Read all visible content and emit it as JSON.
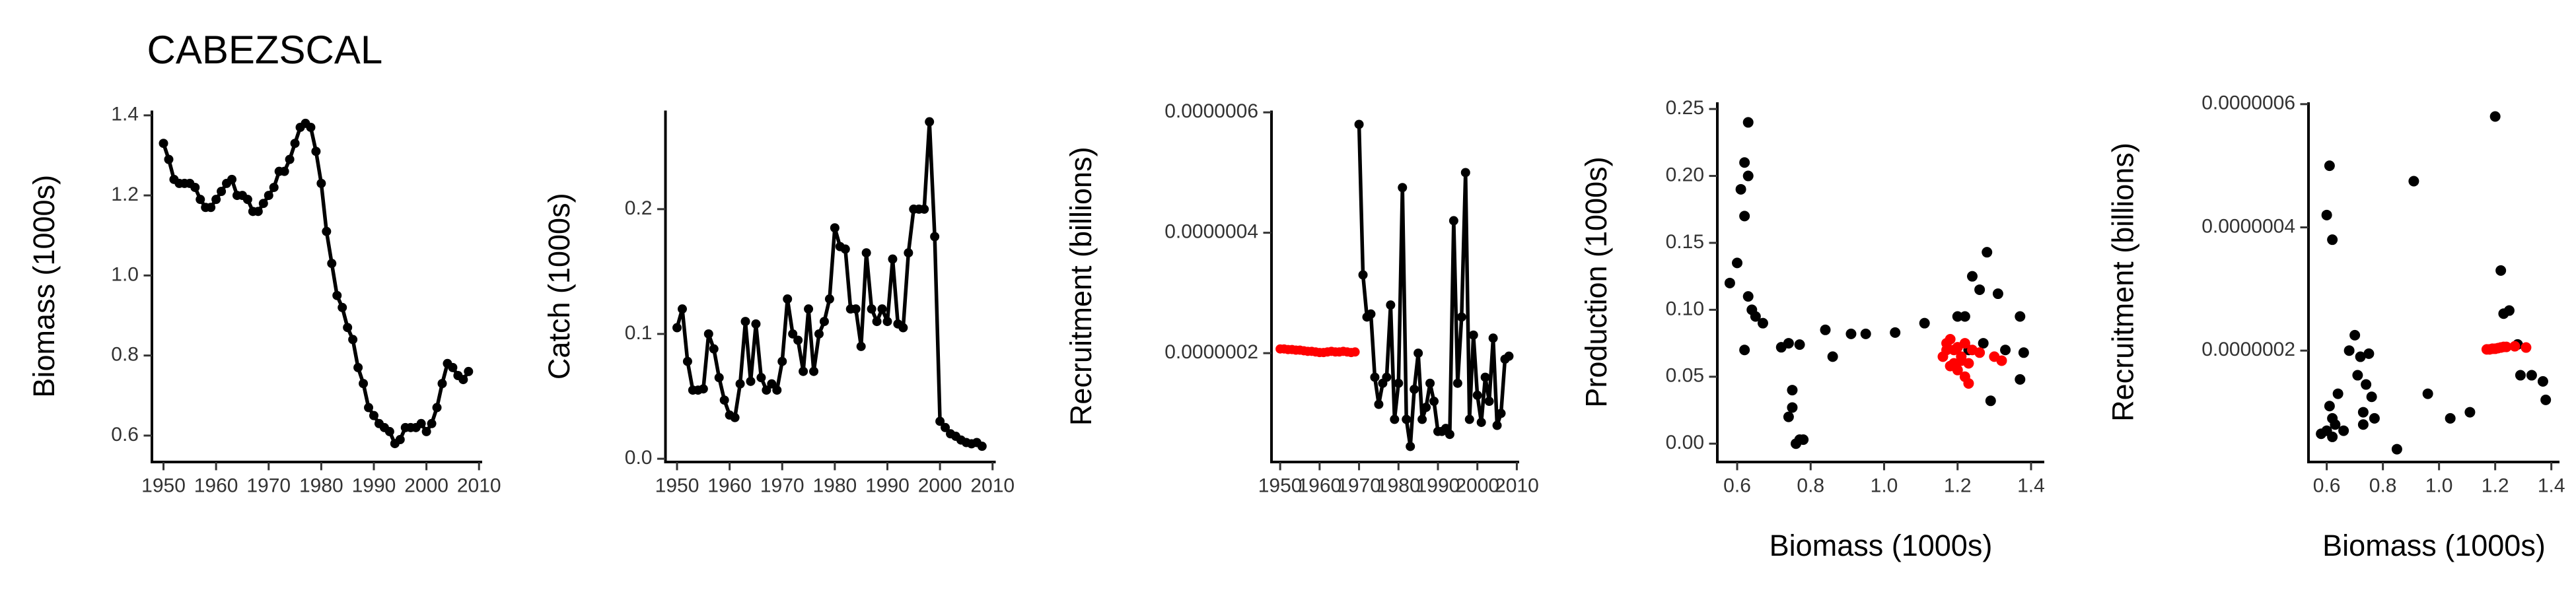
{
  "title": "CABEZSCAL",
  "chart_data": [
    {
      "type": "line",
      "ylabel": "Biomass (1000s)",
      "x": [
        1950,
        1951,
        1952,
        1953,
        1954,
        1955,
        1956,
        1957,
        1958,
        1959,
        1960,
        1961,
        1962,
        1963,
        1964,
        1965,
        1966,
        1967,
        1968,
        1969,
        1970,
        1971,
        1972,
        1973,
        1974,
        1975,
        1976,
        1977,
        1978,
        1979,
        1980,
        1981,
        1982,
        1983,
        1984,
        1985,
        1986,
        1987,
        1988,
        1989,
        1990,
        1991,
        1992,
        1993,
        1994,
        1995,
        1996,
        1997,
        1998,
        1999,
        2000,
        2001,
        2002,
        2003,
        2004,
        2005,
        2006,
        2007,
        2008
      ],
      "series": [
        {
          "color": "#000000",
          "mode": "line-points",
          "values": [
            1.33,
            1.29,
            1.24,
            1.23,
            1.23,
            1.23,
            1.22,
            1.19,
            1.17,
            1.17,
            1.19,
            1.21,
            1.23,
            1.24,
            1.2,
            1.2,
            1.19,
            1.16,
            1.16,
            1.18,
            1.2,
            1.22,
            1.26,
            1.26,
            1.29,
            1.33,
            1.37,
            1.38,
            1.37,
            1.31,
            1.23,
            1.11,
            1.03,
            0.95,
            0.92,
            0.87,
            0.84,
            0.77,
            0.73,
            0.67,
            0.65,
            0.63,
            0.62,
            0.61,
            0.58,
            0.59,
            0.62,
            0.62,
            0.62,
            0.63,
            0.61,
            0.63,
            0.67,
            0.73,
            0.78,
            0.77,
            0.75,
            0.74,
            0.76
          ]
        }
      ],
      "xlim": [
        1947.8,
        2010.6
      ],
      "xticks": [
        1950,
        1960,
        1970,
        1980,
        1990,
        2000,
        2010
      ],
      "ylim": [
        0.534,
        1.412
      ],
      "yticks": [
        0.6,
        0.8,
        {
          "value": 1,
          "label": "1.0"
        },
        1.2,
        1.4
      ]
    },
    {
      "type": "line",
      "ylabel": "Catch (1000s)",
      "x": [
        1950,
        1951,
        1952,
        1953,
        1954,
        1955,
        1956,
        1957,
        1958,
        1959,
        1960,
        1961,
        1962,
        1963,
        1964,
        1965,
        1966,
        1967,
        1968,
        1969,
        1970,
        1971,
        1972,
        1973,
        1974,
        1975,
        1976,
        1977,
        1978,
        1979,
        1980,
        1981,
        1982,
        1983,
        1984,
        1985,
        1986,
        1987,
        1988,
        1989,
        1990,
        1991,
        1992,
        1993,
        1994,
        1995,
        1996,
        1997,
        1998,
        1999,
        2000,
        2001,
        2002,
        2003,
        2004,
        2005,
        2006,
        2007,
        2008
      ],
      "series": [
        {
          "color": "#000000",
          "mode": "line-points",
          "values": [
            0.105,
            0.12,
            0.078,
            0.055,
            0.055,
            0.056,
            0.1,
            0.088,
            0.065,
            0.047,
            0.035,
            0.033,
            0.06,
            0.11,
            0.062,
            0.108,
            0.065,
            0.055,
            0.06,
            0.055,
            0.078,
            0.128,
            0.1,
            0.095,
            0.07,
            0.12,
            0.07,
            0.1,
            0.11,
            0.128,
            0.185,
            0.17,
            0.168,
            0.12,
            0.12,
            0.09,
            0.165,
            0.12,
            0.11,
            0.12,
            0.11,
            0.16,
            0.108,
            0.105,
            0.165,
            0.2,
            0.2,
            0.2,
            0.27,
            0.178,
            0.03,
            0.025,
            0.02,
            0.018,
            0.015,
            0.013,
            0.012,
            0.013,
            0.01
          ]
        }
      ],
      "xlim": [
        1947.8,
        2010.6
      ],
      "xticks": [
        1950,
        1960,
        1970,
        1980,
        1990,
        2000,
        2010
      ],
      "ylim": [
        -0.0026,
        0.279
      ],
      "yticks": [
        {
          "value": 0,
          "label": "0.0"
        },
        0.1,
        0.2
      ]
    },
    {
      "type": "line",
      "ylabel": "Recruitment (billions)",
      "x": [
        1950,
        1951,
        1952,
        1953,
        1954,
        1955,
        1956,
        1957,
        1958,
        1959,
        1960,
        1961,
        1962,
        1963,
        1964,
        1965,
        1966,
        1967,
        1968,
        1969,
        1970,
        1971,
        1972,
        1973,
        1974,
        1975,
        1976,
        1977,
        1978,
        1979,
        1980,
        1981,
        1982,
        1983,
        1984,
        1985,
        1986,
        1987,
        1988,
        1989,
        1990,
        1991,
        1992,
        1993,
        1994,
        1995,
        1996,
        1997,
        1998,
        1999,
        2000,
        2001,
        2002,
        2003,
        2004,
        2005,
        2006,
        2007,
        2008
      ],
      "series": [
        {
          "color": "#ff0000",
          "mode": "points",
          "values": [
            2.07e-07,
            2.07e-07,
            2.06e-07,
            2.06e-07,
            2.05e-07,
            2.05e-07,
            2.04e-07,
            2.03e-07,
            2.03e-07,
            2.02e-07,
            2.01e-07,
            2.01e-07,
            2.02e-07,
            2.03e-07,
            2.02e-07,
            2.02e-07,
            2.03e-07,
            2.02e-07,
            2.01e-07,
            2.02e-07,
            null,
            null,
            null,
            null,
            null,
            null,
            null,
            null,
            null,
            null,
            null,
            null,
            null,
            null,
            null,
            null,
            null,
            null,
            null,
            null,
            null,
            null,
            null,
            null,
            null,
            null,
            null,
            null,
            null,
            null,
            null,
            null,
            null,
            null,
            null,
            null,
            null,
            null,
            null
          ]
        },
        {
          "color": "#000000",
          "mode": "line-points",
          "values": [
            null,
            null,
            null,
            null,
            null,
            null,
            null,
            null,
            null,
            null,
            null,
            null,
            null,
            null,
            null,
            null,
            null,
            null,
            null,
            null,
            5.8e-07,
            3.3e-07,
            2.6e-07,
            2.65e-07,
            1.6e-07,
            1.15e-07,
            1.5e-07,
            1.6e-07,
            2.8e-07,
            9e-08,
            1.5e-07,
            4.75e-07,
            9e-08,
            4.5e-08,
            1.4e-07,
            2e-07,
            9e-08,
            1.1e-07,
            1.5e-07,
            1.2e-07,
            7e-08,
            7e-08,
            7.5e-08,
            6.5e-08,
            4.2e-07,
            1.5e-07,
            2.6e-07,
            5e-07,
            9e-08,
            2.3e-07,
            1.3e-07,
            8.5e-08,
            1.6e-07,
            1.2e-07,
            2.25e-07,
            8e-08,
            1e-07,
            1.9e-07,
            1.95e-07
          ]
        }
      ],
      "xlim": [
        1947.8,
        2010.6
      ],
      "xticks": [
        1950,
        1960,
        1970,
        1980,
        1990,
        2000,
        2010
      ],
      "ylim": [
        1.92e-08,
        6.03e-07
      ],
      "yticks": [
        {
          "value": 2e-07,
          "label": "0.0000002"
        },
        {
          "value": 4e-07,
          "label": "0.0000004"
        },
        {
          "value": 6e-07,
          "label": "0.0000006"
        }
      ]
    },
    {
      "type": "scatter",
      "xlabel": "Biomass (1000s)",
      "ylabel": "Production (1000s)",
      "series": [
        {
          "color": "#000000",
          "x": [
            0.58,
            0.6,
            0.61,
            0.62,
            0.63,
            0.62,
            0.63,
            0.62,
            0.64,
            0.63,
            0.65,
            0.67,
            0.72,
            0.74,
            0.75,
            0.74,
            0.75,
            0.76,
            0.77,
            0.78,
            0.77,
            0.84,
            0.86,
            0.91,
            0.95,
            1.03,
            1.11,
            1.2,
            1.22,
            1.23,
            1.24,
            1.26,
            1.28,
            1.27,
            1.31,
            1.33,
            1.37,
            1.38,
            1.37,
            1.29
          ],
          "values": [
            0.12,
            0.135,
            0.19,
            0.21,
            0.2,
            0.17,
            0.24,
            0.07,
            0.1,
            0.11,
            0.095,
            0.09,
            0.072,
            0.075,
            0.04,
            0.02,
            0.027,
            0,
            0.003,
            0.003,
            0.074,
            0.085,
            0.065,
            0.082,
            0.082,
            0.083,
            0.09,
            0.095,
            0.095,
            0.07,
            0.125,
            0.115,
            0.143,
            0.075,
            0.112,
            0.07,
            0.095,
            0.068,
            0.048,
            0.032
          ]
        },
        {
          "color": "#ff0000",
          "x": [
            1.16,
            1.17,
            1.17,
            1.18,
            1.19,
            1.19,
            1.2,
            1.21,
            1.22,
            1.23,
            1.24,
            1.22,
            1.2,
            1.23,
            1.18,
            1.21,
            1.26,
            1.3,
            1.32
          ],
          "values": [
            0.065,
            0.07,
            0.075,
            0.078,
            0.07,
            0.06,
            0.055,
            0.065,
            0.05,
            0.06,
            0.07,
            0.075,
            0.072,
            0.045,
            0.058,
            0.062,
            0.068,
            0.065,
            0.062
          ]
        }
      ],
      "xlim": [
        0.546,
        1.436
      ],
      "xticks": [
        0.6,
        0.8,
        {
          "value": 1,
          "label": "1.0"
        },
        1.2,
        1.4
      ],
      "ylim": [
        -0.0137,
        0.255
      ],
      "yticks": [
        {
          "value": 0,
          "label": "0.00"
        },
        0.05,
        {
          "value": 0.1,
          "label": "0.10"
        },
        0.15,
        {
          "value": 0.2,
          "label": "0.20"
        },
        0.25
      ]
    },
    {
      "type": "scatter",
      "xlabel": "Biomass (1000s)",
      "ylabel": "Recruitment (billions)",
      "series": [
        {
          "color": "#000000",
          "x": [
            0.58,
            0.6,
            0.61,
            0.62,
            0.6,
            0.61,
            0.62,
            0.63,
            0.62,
            0.64,
            0.66,
            0.68,
            0.7,
            0.71,
            0.72,
            0.73,
            0.74,
            0.75,
            0.76,
            0.73,
            0.77,
            0.85,
            0.91,
            0.96,
            1.04,
            1.11,
            1.2,
            1.22,
            1.23,
            1.25,
            1.28,
            1.29,
            1.33,
            1.37,
            1.38
          ],
          "values": [
            6.5e-08,
            4.2e-07,
            5e-07,
            3.8e-07,
            7e-08,
            1.1e-07,
            9e-08,
            8e-08,
            6e-08,
            1.3e-07,
            7e-08,
            2e-07,
            2.25e-07,
            1.6e-07,
            1.9e-07,
            1e-07,
            1.45e-07,
            1.95e-07,
            1.25e-07,
            8e-08,
            9e-08,
            4e-08,
            4.75e-07,
            1.3e-07,
            9e-08,
            1e-07,
            5.8e-07,
            3.3e-07,
            2.6e-07,
            2.65e-07,
            2.1e-07,
            1.6e-07,
            1.6e-07,
            1.5e-07,
            1.2e-07
          ]
        },
        {
          "color": "#ff0000",
          "x": [
            1.17,
            1.18,
            1.19,
            1.2,
            1.21,
            1.22,
            1.23,
            1.24,
            1.27,
            1.31
          ],
          "values": [
            2.02e-07,
            2.02e-07,
            2.03e-07,
            2.03e-07,
            2.04e-07,
            2.05e-07,
            2.06e-07,
            2.06e-07,
            2.07e-07,
            2.05e-07
          ]
        }
      ],
      "xlim": [
        0.535,
        1.429
      ],
      "xticks": [
        0.6,
        0.8,
        {
          "value": 1,
          "label": "1.0"
        },
        1.2,
        1.4
      ],
      "ylim": [
        1.92e-08,
        6.03e-07
      ],
      "yticks": [
        {
          "value": 2e-07,
          "label": "0.0000002"
        },
        {
          "value": 4e-07,
          "label": "0.0000004"
        },
        {
          "value": 6e-07,
          "label": "0.0000006"
        }
      ]
    }
  ]
}
